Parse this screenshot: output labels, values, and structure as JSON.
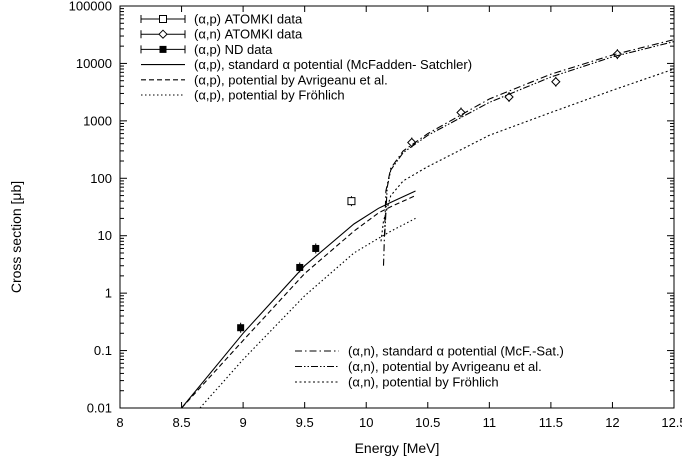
{
  "chart_data": {
    "type": "scatter",
    "xlabel": "Energy [MeV]",
    "ylabel": "Cross section [μb]",
    "xscale": "linear",
    "yscale": "log",
    "xlim": [
      8,
      12.5
    ],
    "ylim": [
      0.01,
      100000
    ],
    "xticks": [
      8,
      8.5,
      9,
      9.5,
      10,
      10.5,
      11,
      11.5,
      12,
      12.5
    ],
    "xtick_labels": [
      "8",
      "8.5",
      "9",
      "9.5",
      "10",
      "10.5",
      "11",
      "11.5",
      "12",
      "12.5"
    ],
    "yticks": [
      0.01,
      0.1,
      1,
      10,
      100,
      1000,
      10000,
      100000
    ],
    "ytick_labels": [
      "0.01",
      "0.1",
      "1",
      "10",
      "100",
      "1000",
      "10000",
      "100000"
    ],
    "grid": false,
    "legend_top": {
      "placement": "top-left",
      "entries": [
        {
          "label": "(α,p) ATOMKI data",
          "series": 0
        },
        {
          "label": "(α,n) ATOMKI data",
          "series": 1
        },
        {
          "label": "(α,p) ND data",
          "series": 2
        },
        {
          "label": "(α,p), standard α potential (McFadden- Satchler)",
          "series": 3
        },
        {
          "label": "(α,p), potential by Avrigeanu et al.",
          "series": 4
        },
        {
          "label": "(α,p), potential by Fröhlich",
          "series": 5
        }
      ]
    },
    "legend_bottom": {
      "placement": "bottom-right",
      "entries": [
        {
          "label": "(α,n), standard α potential (McF.-Sat.)",
          "series": 6
        },
        {
          "label": "(α,n), potential by Avrigeanu et al.",
          "series": 7
        },
        {
          "label": "(α,n), potential by Fröhlich",
          "series": 8
        }
      ]
    },
    "series": [
      {
        "kind": "points",
        "marker": "open-square",
        "color": "#000000",
        "points": [
          {
            "x": 9.88,
            "y": 40
          }
        ]
      },
      {
        "kind": "points",
        "marker": "open-diamond",
        "color": "#000000",
        "points": [
          {
            "x": 10.37,
            "y": 420
          },
          {
            "x": 10.77,
            "y": 1400
          },
          {
            "x": 11.16,
            "y": 2600
          },
          {
            "x": 11.54,
            "y": 4800
          },
          {
            "x": 12.04,
            "y": 14500
          }
        ]
      },
      {
        "kind": "points",
        "marker": "filled-square",
        "color": "#000000",
        "points": [
          {
            "x": 8.98,
            "y": 0.25
          },
          {
            "x": 9.46,
            "y": 2.8
          },
          {
            "x": 9.59,
            "y": 6
          }
        ]
      },
      {
        "kind": "line",
        "dash": "solid",
        "color": "#000000",
        "points": [
          {
            "x": 8.5,
            "y": 0.01
          },
          {
            "x": 9.0,
            "y": 0.2
          },
          {
            "x": 9.5,
            "y": 3
          },
          {
            "x": 9.9,
            "y": 16
          },
          {
            "x": 10.1,
            "y": 30
          },
          {
            "x": 10.2,
            "y": 38
          },
          {
            "x": 10.4,
            "y": 60
          }
        ]
      },
      {
        "kind": "line",
        "dash": "dashed",
        "color": "#000000",
        "points": [
          {
            "x": 8.5,
            "y": 0.01
          },
          {
            "x": 9.0,
            "y": 0.15
          },
          {
            "x": 9.5,
            "y": 2.2
          },
          {
            "x": 9.9,
            "y": 12
          },
          {
            "x": 10.1,
            "y": 25
          },
          {
            "x": 10.2,
            "y": 32
          },
          {
            "x": 10.4,
            "y": 50
          }
        ]
      },
      {
        "kind": "line",
        "dash": "dotted",
        "color": "#000000",
        "points": [
          {
            "x": 8.65,
            "y": 0.01
          },
          {
            "x": 9.0,
            "y": 0.07
          },
          {
            "x": 9.5,
            "y": 0.9
          },
          {
            "x": 9.9,
            "y": 5
          },
          {
            "x": 10.1,
            "y": 9
          },
          {
            "x": 10.2,
            "y": 12
          },
          {
            "x": 10.4,
            "y": 20
          }
        ]
      },
      {
        "kind": "line",
        "dash": "dash-dot",
        "color": "#000000",
        "points": [
          {
            "x": 10.14,
            "y": 3
          },
          {
            "x": 10.16,
            "y": 60
          },
          {
            "x": 10.2,
            "y": 150
          },
          {
            "x": 10.3,
            "y": 300
          },
          {
            "x": 10.5,
            "y": 600
          },
          {
            "x": 11.0,
            "y": 2400
          },
          {
            "x": 11.5,
            "y": 6500
          },
          {
            "x": 12.0,
            "y": 14000
          },
          {
            "x": 12.5,
            "y": 26000
          }
        ]
      },
      {
        "kind": "line",
        "dash": "dash-dot-dot",
        "color": "#000000",
        "points": [
          {
            "x": 10.15,
            "y": 10
          },
          {
            "x": 10.17,
            "y": 70
          },
          {
            "x": 10.2,
            "y": 140
          },
          {
            "x": 10.3,
            "y": 280
          },
          {
            "x": 10.5,
            "y": 560
          },
          {
            "x": 11.0,
            "y": 2100
          },
          {
            "x": 11.5,
            "y": 5800
          },
          {
            "x": 12.0,
            "y": 13000
          },
          {
            "x": 12.5,
            "y": 24000
          }
        ]
      },
      {
        "kind": "line",
        "dash": "dense-dot",
        "color": "#000000",
        "points": [
          {
            "x": 10.12,
            "y": 8
          },
          {
            "x": 10.14,
            "y": 18
          },
          {
            "x": 10.2,
            "y": 50
          },
          {
            "x": 10.3,
            "y": 90
          },
          {
            "x": 10.5,
            "y": 160
          },
          {
            "x": 11.0,
            "y": 560
          },
          {
            "x": 11.5,
            "y": 1400
          },
          {
            "x": 12.0,
            "y": 3400
          },
          {
            "x": 12.5,
            "y": 8000
          }
        ]
      }
    ]
  }
}
